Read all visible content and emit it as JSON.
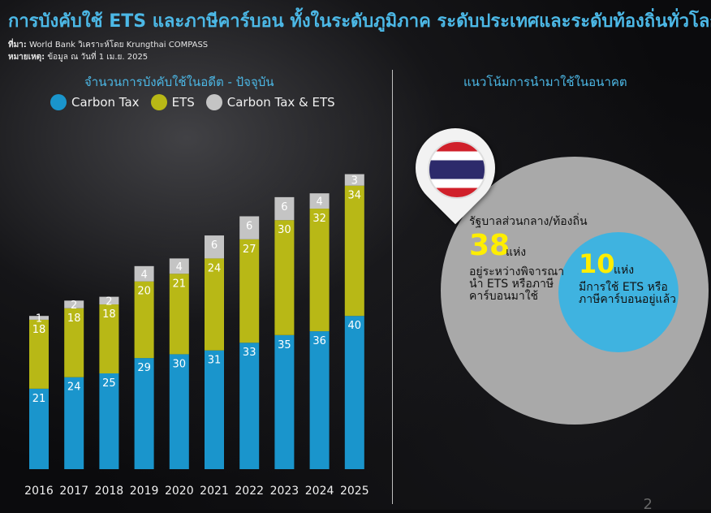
{
  "header": {
    "title": "การบังคับใช้ ETS และภาษีคาร์บอน ทั้งในระดับภูมิภาค ระดับประเทศและระดับท้องถิ่นทั่วโลก",
    "source_label": "ที่มา:",
    "source_text": " World Bank วิเคราะห์โดย Krungthai COMPASS",
    "note_label": "หมายเหตุ:",
    "note_text": " ข้อมูล ณ วันที่ 1 เม.ย. 2025"
  },
  "left_panel": {
    "title": "จำนวนการบังคับใช้ในอดีต - ปัจจุบัน"
  },
  "right_panel": {
    "title": "แนวโน้มการนำมาใช้ในอนาคต",
    "central_heading": "รัฐบาลส่วนกลาง/ท้องถิ่น",
    "central_count": "38",
    "central_unit": "แห่ง",
    "central_desc": "อยู่ระหว่างพิจารณานำ ETS หรือภาษีคาร์บอนมาใช้",
    "local_count": "10",
    "local_unit": "แห่ง",
    "local_desc": "มีการใช้ ETS หรือภาษีคาร์บอนอยู่แล้ว",
    "flag_icon": "thailand-flag-icon"
  },
  "page_number": "2",
  "colors": {
    "carbon_tax": "#1a95cc",
    "ets": "#b8b816",
    "both": "#c4c4c4",
    "accent": "#4cb8e6",
    "highlight": "#ffee00"
  },
  "chart_data": {
    "type": "bar",
    "stacked": true,
    "categories": [
      "2016",
      "2017",
      "2018",
      "2019",
      "2020",
      "2021",
      "2022",
      "2023",
      "2024",
      "2025"
    ],
    "series": [
      {
        "name": "Carbon Tax",
        "values": [
          21,
          24,
          25,
          29,
          30,
          31,
          33,
          35,
          36,
          40
        ]
      },
      {
        "name": "ETS",
        "values": [
          18,
          18,
          18,
          20,
          21,
          24,
          27,
          30,
          32,
          34
        ]
      },
      {
        "name": "Carbon Tax & ETS",
        "values": [
          1,
          2,
          2,
          4,
          4,
          6,
          6,
          6,
          4,
          3
        ]
      }
    ],
    "legend": "top-left"
  }
}
